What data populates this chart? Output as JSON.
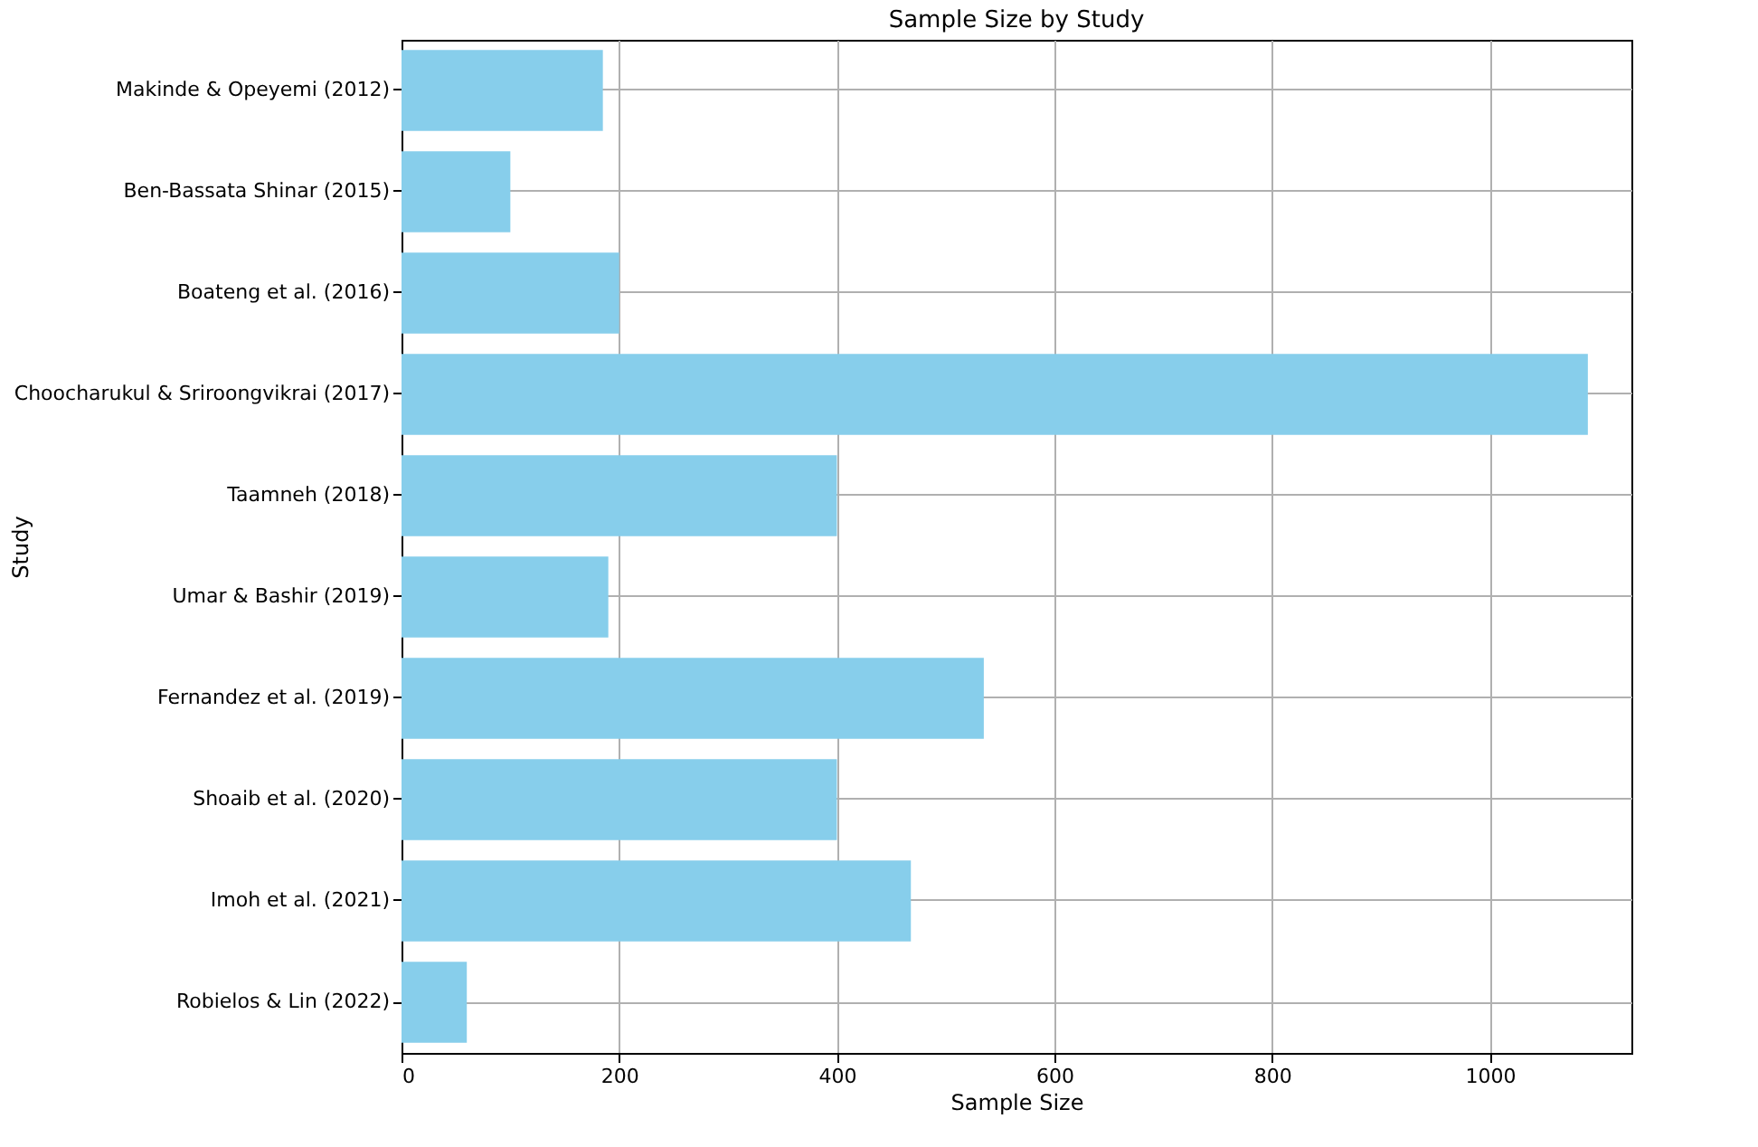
{
  "chart_data": {
    "type": "bar",
    "orientation": "horizontal",
    "title": "Sample Size by Study",
    "xlabel": "Sample Size",
    "ylabel": "Study",
    "categories": [
      "Makinde & Opeyemi (2012)",
      "Ben-Bassata Shinar (2015)",
      "Boateng et al. (2016)",
      "Choocharukul & Sriroongvikrai (2017)",
      "Taamneh (2018)",
      "Umar & Bashir (2019)",
      "Fernandez et al. (2019)",
      "Shoaib et al. (2020)",
      "Imoh et al. (2021)",
      "Robielos & Lin (2022)"
    ],
    "values": [
      185,
      100,
      200,
      1090,
      400,
      190,
      535,
      400,
      468,
      60
    ],
    "color": "#87ceeb",
    "xlim": [
      0,
      1130
    ],
    "xticks": [
      0,
      200,
      400,
      600,
      800,
      1000
    ],
    "grid": true
  }
}
